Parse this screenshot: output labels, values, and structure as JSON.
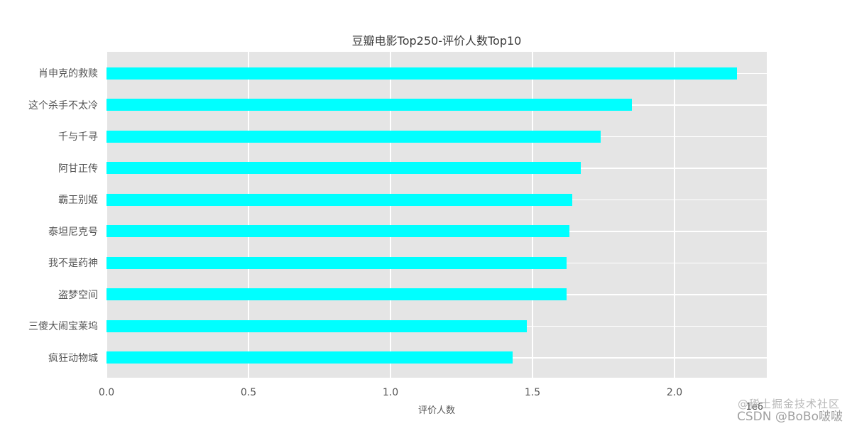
{
  "title": "豆瓣电影Top250-评价人数Top10",
  "chart_data": {
    "type": "bar",
    "orientation": "horizontal",
    "title": "豆瓣电影Top250-评价人数Top10",
    "categories": [
      "肖申克的救赎",
      "这个杀手不太冷",
      "千与千寻",
      "阿甘正传",
      "霸王别姬",
      "泰坦尼克号",
      "我不是药神",
      "盗梦空间",
      "三傻大闹宝莱坞",
      "疯狂动物城"
    ],
    "values": [
      2.22,
      1.85,
      1.74,
      1.67,
      1.64,
      1.63,
      1.62,
      1.62,
      1.48,
      1.43
    ],
    "values_unit": "1e6",
    "xlabel": "评价人数",
    "ylabel": "",
    "x_ticks": [
      "0.0",
      "0.5",
      "1.0",
      "1.5",
      "2.0"
    ],
    "x_tick_values": [
      0,
      0.5,
      1.0,
      1.5,
      2.0
    ],
    "xlim": [
      0,
      2.325
    ],
    "offset_text": "1e6",
    "grid": true,
    "legend": false,
    "bar_color": "#00ffff",
    "plot_background": "#e5e5e5",
    "grid_color": "#ffffff"
  },
  "watermarks": {
    "juejin": "@稀土掘金技术社区",
    "csdn": "CSDN @BoBo啵啵"
  }
}
